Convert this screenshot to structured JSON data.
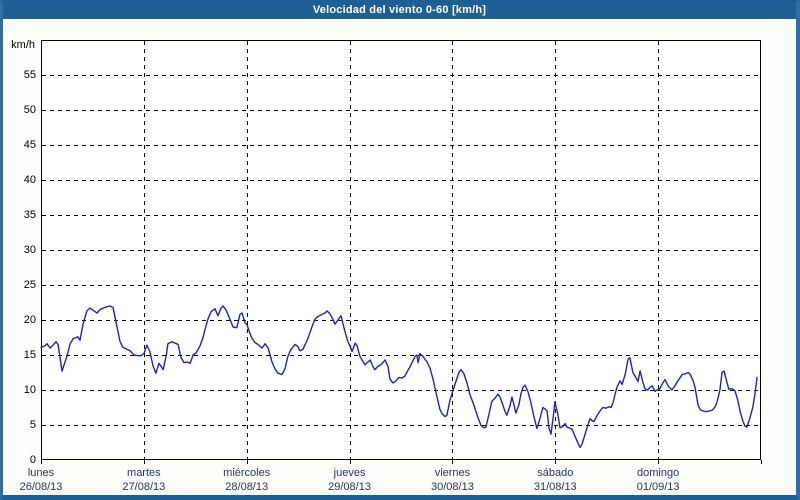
{
  "window": {
    "title": "Velocidad del viento 0-60 [km/h]"
  },
  "colors": {
    "titlebar_bg": "#1d6093",
    "frame_side": "#2f6ea6",
    "frame_bottom": "#1d5f95",
    "plot_bg": "#ffffff",
    "plot_border": "#000000",
    "grid": "#000000",
    "line": "#2222bd",
    "tick_text": "#000000",
    "day_text": "#24365a"
  },
  "chart_data": {
    "type": "line",
    "title": "Velocidad del viento 0-60 [km/h]",
    "ylabel": "km/h",
    "xlabel": "",
    "ylim": [
      0,
      60
    ],
    "yticks": [
      0,
      5,
      10,
      15,
      20,
      25,
      30,
      35,
      40,
      45,
      50,
      55
    ],
    "grid": "dashed",
    "legend_position": "none",
    "x_unit": "hours since lunes 00:00",
    "xlim": [
      0,
      168
    ],
    "x_days": [
      {
        "name": "lunes",
        "date": "26/08/13"
      },
      {
        "name": "martes",
        "date": "27/08/13"
      },
      {
        "name": "miércoles",
        "date": "28/08/13"
      },
      {
        "name": "jueves",
        "date": "29/08/13"
      },
      {
        "name": "viernes",
        "date": "30/08/13"
      },
      {
        "name": "sábado",
        "date": "31/08/13"
      },
      {
        "name": "domingo",
        "date": "01/09/13"
      }
    ],
    "series": [
      {
        "name": "velocidad del viento",
        "color": "#2222bd",
        "points": [
          [
            0,
            16.1
          ],
          [
            0.9,
            16.3
          ],
          [
            1.4,
            16.6
          ],
          [
            2.1,
            16.0
          ],
          [
            2.8,
            16.4
          ],
          [
            3.5,
            16.9
          ],
          [
            4.0,
            16.5
          ],
          [
            4.9,
            12.7
          ],
          [
            6.1,
            14.9
          ],
          [
            6.8,
            16.6
          ],
          [
            7.5,
            17.3
          ],
          [
            8.2,
            17.5
          ],
          [
            8.6,
            17.6
          ],
          [
            9.1,
            17.1
          ],
          [
            9.8,
            19.4
          ],
          [
            10.7,
            21.3
          ],
          [
            11.4,
            21.7
          ],
          [
            12.6,
            21.2
          ],
          [
            13.1,
            21.0
          ],
          [
            13.8,
            21.5
          ],
          [
            14.5,
            21.7
          ],
          [
            15.4,
            21.9
          ],
          [
            16.1,
            22.0
          ],
          [
            16.8,
            21.8
          ],
          [
            17.7,
            19.1
          ],
          [
            18.4,
            17.0
          ],
          [
            19.1,
            16.1
          ],
          [
            20.1,
            15.8
          ],
          [
            20.8,
            15.6
          ],
          [
            21.7,
            15.0
          ],
          [
            22.6,
            14.9
          ],
          [
            23.3,
            14.9
          ],
          [
            24.0,
            15.2
          ],
          [
            24.7,
            16.4
          ],
          [
            25.4,
            15.5
          ],
          [
            26.1,
            13.5
          ],
          [
            26.8,
            12.4
          ],
          [
            27.5,
            13.8
          ],
          [
            28.0,
            13.4
          ],
          [
            28.5,
            12.9
          ],
          [
            29.2,
            14.8
          ],
          [
            29.6,
            16.6
          ],
          [
            30.6,
            16.9
          ],
          [
            31.3,
            16.7
          ],
          [
            32.0,
            16.5
          ],
          [
            32.7,
            14.6
          ],
          [
            33.4,
            13.9
          ],
          [
            34.1,
            14.0
          ],
          [
            34.8,
            13.8
          ],
          [
            35.5,
            15.0
          ],
          [
            36.2,
            15.3
          ],
          [
            37.1,
            16.3
          ],
          [
            37.8,
            17.5
          ],
          [
            38.3,
            18.7
          ],
          [
            39.0,
            20.2
          ],
          [
            39.7,
            21.2
          ],
          [
            40.6,
            21.6
          ],
          [
            41.3,
            20.6
          ],
          [
            42.0,
            21.7
          ],
          [
            42.5,
            22.0
          ],
          [
            43.2,
            21.4
          ],
          [
            44.1,
            20.1
          ],
          [
            44.8,
            19.0
          ],
          [
            45.7,
            18.9
          ],
          [
            46.4,
            20.8
          ],
          [
            46.9,
            21.0
          ],
          [
            47.6,
            19.6
          ],
          [
            48.1,
            19.3
          ],
          [
            48.8,
            18.0
          ],
          [
            49.2,
            17.4
          ],
          [
            49.9,
            16.8
          ],
          [
            50.6,
            16.5
          ],
          [
            51.6,
            16.0
          ],
          [
            52.3,
            16.6
          ],
          [
            53.0,
            16.0
          ],
          [
            53.9,
            14.0
          ],
          [
            54.6,
            13.0
          ],
          [
            55.3,
            12.4
          ],
          [
            56.2,
            12.2
          ],
          [
            56.9,
            13.0
          ],
          [
            57.6,
            14.8
          ],
          [
            58.3,
            15.8
          ],
          [
            59.3,
            16.5
          ],
          [
            60.0,
            16.2
          ],
          [
            60.4,
            15.6
          ],
          [
            61.1,
            15.8
          ],
          [
            62.3,
            17.4
          ],
          [
            63.2,
            19.0
          ],
          [
            63.9,
            20.1
          ],
          [
            64.6,
            20.5
          ],
          [
            65.6,
            20.8
          ],
          [
            66.3,
            21.0
          ],
          [
            66.7,
            21.3
          ],
          [
            67.4,
            20.9
          ],
          [
            68.1,
            20.1
          ],
          [
            68.6,
            19.4
          ],
          [
            69.3,
            20.0
          ],
          [
            70.0,
            20.6
          ],
          [
            70.9,
            18.4
          ],
          [
            71.6,
            16.9
          ],
          [
            72.1,
            16.3
          ],
          [
            72.6,
            15.5
          ],
          [
            73.3,
            16.7
          ],
          [
            73.7,
            16.4
          ],
          [
            74.4,
            14.8
          ],
          [
            74.9,
            14.3
          ],
          [
            75.6,
            13.6
          ],
          [
            76.3,
            14.0
          ],
          [
            76.8,
            14.3
          ],
          [
            77.5,
            13.3
          ],
          [
            77.9,
            12.9
          ],
          [
            78.6,
            13.4
          ],
          [
            79.3,
            13.6
          ],
          [
            80.3,
            14.3
          ],
          [
            81.0,
            13.3
          ],
          [
            81.4,
            11.6
          ],
          [
            82.1,
            11.0
          ],
          [
            82.8,
            11.3
          ],
          [
            83.5,
            11.8
          ],
          [
            84.2,
            11.7
          ],
          [
            84.9,
            12.0
          ],
          [
            85.6,
            12.8
          ],
          [
            86.1,
            13.3
          ],
          [
            86.8,
            14.2
          ],
          [
            87.3,
            14.8
          ],
          [
            87.7,
            15.0
          ],
          [
            88.0,
            13.9
          ],
          [
            88.4,
            15.2
          ],
          [
            89.1,
            14.8
          ],
          [
            90.1,
            14.0
          ],
          [
            90.8,
            13.1
          ],
          [
            91.5,
            11.5
          ],
          [
            92.4,
            9.0
          ],
          [
            93.1,
            7.2
          ],
          [
            93.6,
            6.6
          ],
          [
            94.3,
            6.2
          ],
          [
            94.7,
            6.4
          ],
          [
            95.4,
            8.5
          ],
          [
            96.1,
            9.9
          ],
          [
            96.8,
            11.2
          ],
          [
            97.5,
            12.5
          ],
          [
            98.0,
            12.9
          ],
          [
            98.7,
            12.3
          ],
          [
            99.4,
            11.0
          ],
          [
            100.1,
            9.3
          ],
          [
            100.8,
            8.2
          ],
          [
            101.3,
            7.3
          ],
          [
            102.0,
            6.0
          ],
          [
            102.7,
            4.9
          ],
          [
            103.4,
            4.6
          ],
          [
            103.8,
            4.7
          ],
          [
            104.5,
            6.5
          ],
          [
            105.2,
            8.4
          ],
          [
            105.9,
            8.8
          ],
          [
            106.6,
            9.4
          ],
          [
            107.1,
            9.0
          ],
          [
            107.8,
            7.8
          ],
          [
            108.3,
            6.9
          ],
          [
            108.7,
            6.4
          ],
          [
            109.4,
            7.7
          ],
          [
            109.9,
            9.0
          ],
          [
            110.4,
            7.8
          ],
          [
            110.8,
            6.7
          ],
          [
            111.5,
            7.9
          ],
          [
            112.0,
            9.5
          ],
          [
            112.5,
            10.4
          ],
          [
            112.9,
            10.7
          ],
          [
            113.6,
            9.8
          ],
          [
            114.3,
            8.2
          ],
          [
            115.0,
            6.2
          ],
          [
            115.7,
            4.5
          ],
          [
            116.4,
            5.9
          ],
          [
            117.1,
            7.5
          ],
          [
            117.6,
            7.3
          ],
          [
            118.1,
            7.0
          ],
          [
            118.5,
            4.6
          ],
          [
            119.0,
            3.7
          ],
          [
            119.5,
            6.0
          ],
          [
            119.9,
            8.3
          ],
          [
            120.6,
            6.5
          ],
          [
            121.1,
            4.6
          ],
          [
            121.8,
            4.8
          ],
          [
            122.3,
            5.2
          ],
          [
            122.7,
            4.7
          ],
          [
            123.2,
            4.6
          ],
          [
            123.9,
            4.4
          ],
          [
            124.6,
            3.4
          ],
          [
            125.3,
            2.4
          ],
          [
            125.8,
            1.8
          ],
          [
            126.2,
            2.2
          ],
          [
            126.9,
            3.6
          ],
          [
            127.6,
            5.0
          ],
          [
            128.1,
            5.9
          ],
          [
            128.6,
            5.6
          ],
          [
            129.0,
            5.5
          ],
          [
            129.7,
            6.3
          ],
          [
            130.4,
            7.0
          ],
          [
            131.1,
            7.5
          ],
          [
            131.8,
            7.4
          ],
          [
            132.5,
            7.6
          ],
          [
            133.0,
            7.5
          ],
          [
            133.5,
            8.2
          ],
          [
            133.9,
            9.3
          ],
          [
            134.4,
            10.4
          ],
          [
            135.1,
            11.3
          ],
          [
            135.6,
            10.8
          ],
          [
            136.3,
            12.2
          ],
          [
            137.0,
            14.4
          ],
          [
            137.4,
            14.6
          ],
          [
            138.1,
            12.5
          ],
          [
            138.6,
            12.0
          ],
          [
            139.3,
            11.2
          ],
          [
            139.8,
            12.7
          ],
          [
            140.5,
            11.0
          ],
          [
            140.9,
            10.2
          ],
          [
            141.6,
            10.0
          ],
          [
            142.1,
            10.4
          ],
          [
            142.6,
            10.6
          ],
          [
            143.3,
            9.8
          ],
          [
            143.7,
            10.0
          ],
          [
            144.2,
            10.0
          ],
          [
            144.9,
            10.8
          ],
          [
            145.6,
            11.5
          ],
          [
            146.3,
            10.6
          ],
          [
            147.2,
            10.0
          ],
          [
            147.9,
            10.6
          ],
          [
            148.6,
            11.3
          ],
          [
            149.6,
            12.2
          ],
          [
            150.3,
            12.3
          ],
          [
            151.0,
            12.5
          ],
          [
            151.4,
            12.3
          ],
          [
            152.1,
            11.4
          ],
          [
            152.6,
            10.4
          ],
          [
            153.3,
            7.9
          ],
          [
            153.8,
            7.2
          ],
          [
            154.5,
            7.0
          ],
          [
            155.2,
            6.9
          ],
          [
            155.9,
            7.0
          ],
          [
            156.6,
            7.1
          ],
          [
            157.3,
            7.6
          ],
          [
            157.7,
            8.2
          ],
          [
            158.4,
            10.0
          ],
          [
            158.9,
            12.5
          ],
          [
            159.4,
            12.7
          ],
          [
            160.1,
            11.0
          ],
          [
            160.5,
            10.1
          ],
          [
            161.2,
            10.2
          ],
          [
            161.9,
            9.9
          ],
          [
            162.6,
            8.5
          ],
          [
            163.1,
            7.0
          ],
          [
            163.8,
            5.5
          ],
          [
            164.3,
            4.8
          ],
          [
            164.7,
            4.7
          ],
          [
            165.4,
            6.0
          ],
          [
            166.1,
            7.6
          ],
          [
            166.6,
            9.5
          ],
          [
            167.1,
            11.8
          ]
        ]
      }
    ]
  }
}
